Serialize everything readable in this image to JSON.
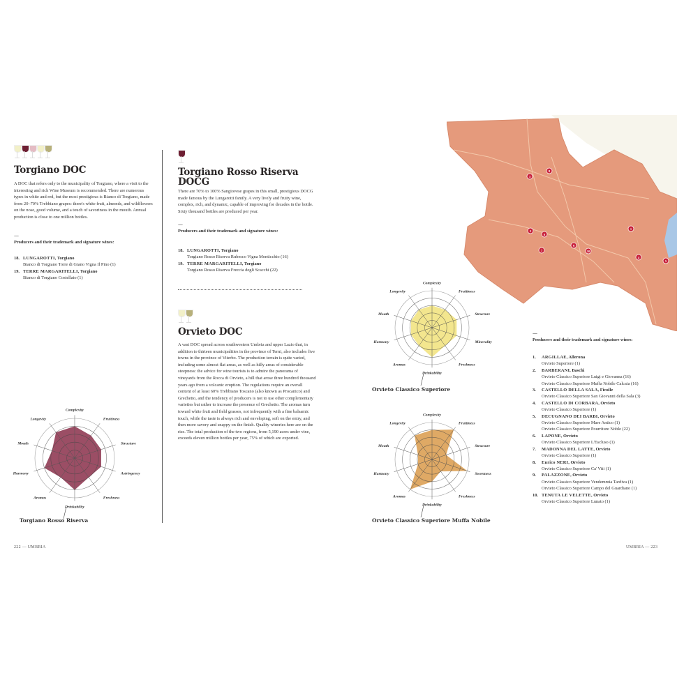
{
  "left_page": {
    "glasses": [
      "white",
      "red",
      "rose",
      "white",
      "sweet"
    ],
    "torgiano_doc": {
      "title": "Torgiano DOC",
      "body": "A DOC that refers only to the municipality of Torgiano, where a visit to the interesting and rich Wine Museum is recommended. There are numerous types in white and red, but the most prestigious is Bianco di Torgiano, made from 20–70% Trebbiano grapes: there's white fruit, almonds, and wildflowers on the nose, good volume, and a touch of savoriness in the mouth. Annual production is close to one million bottles.",
      "dash": "—",
      "producers_heading": "Producers and their trademark and signature wines:",
      "producers": [
        {
          "num": "18.",
          "name": "LUNGAROTTI",
          "town": ", Torgiano",
          "wines": [
            "Bianco di Torgiano Torre di Giano Vigna Il Pino (1)"
          ]
        },
        {
          "num": "19.",
          "name": "TERRE MARGARITELLI",
          "town": ", Torgiano",
          "wines": [
            "Bianco di Torgiano Costellato (1)"
          ]
        }
      ]
    },
    "folio": "222 — UMBRIA"
  },
  "middle_column": {
    "torgiano_rosso": {
      "glass": "red",
      "title": "Torgiano Rosso Riserva DOCG",
      "body": "There are 70% to 100% Sangiovese grapes in this small, prestigious DOCG made famous by the Lungarotti family. A very lively and fruity wine, complex, rich, and dynamic, capable of improving for decades in the bottle. Sixty thousand bottles are produced per year.",
      "dash": "—",
      "producers_heading": "Producers and their trademark and signature wines:",
      "producers": [
        {
          "num": "18.",
          "name": "LUNGAROTTI",
          "town": ", Torgiano",
          "wines": [
            "Torgiano Rosso Riserva Rubesco Vigna Monticchio (16)"
          ]
        },
        {
          "num": "19.",
          "name": "TERRE MARGARITELLI",
          "town": ", Torgiano",
          "wines": [
            "Torgiano Rosso Riserva Freccia degli Scacchi (22)"
          ]
        }
      ]
    },
    "orvieto_doc": {
      "glasses": [
        "white",
        "sweet"
      ],
      "title": "Orvieto DOC",
      "body": "A vast DOC spread across southwestern Umbria and upper Lazio that, in addition to thirteen municipalities in the province of Terni, also includes five towns in the province of Viterbo. The production terrain is quite varied, including some almost flat areas, as well as hilly areas of considerable steepness: the advice for wine tourists is to admire the panorama of vineyards from the Rocca di Orvieto, a hill that arose three hundred thousand years ago from a volcanic eruption. The regulations require an overall content of at least 60% Trebbiano Toscano (also known as Procanico) and Grechetto, and the tendency of producers is not to use other complementary varieties but rather to increase the presence of Grechetto. The aromas turn toward white fruit and field grasses, not infrequently with a fine balsamic touch, while the taste is always rich and enveloping, soft on the entry, and then more savory and snappy on the finish. Quality wineries here are on the rise. The total production of the two regions, from 5,190 acres under vine, exceeds eleven million bottles per year, 75% of which are exported."
    }
  },
  "radar_charts": [
    {
      "caption": "Torgiano Rosso Riserva",
      "color": "#8a2f4a",
      "axes": [
        "Complexity",
        "Fruitiness",
        "Structure",
        "Astringency",
        "Freshness",
        "Drinkability",
        "Aromas",
        "Harmony",
        "Mouth",
        "Longevity"
      ],
      "values": [
        4,
        3.5,
        3.5,
        3.5,
        3,
        4,
        3,
        4,
        3,
        4
      ],
      "max": 5
    },
    {
      "caption": "Orvieto Classico Superiore",
      "color": "#f1e27a",
      "axes": [
        "Complexity",
        "Fruitiness",
        "Structure",
        "Minerality",
        "Freshness",
        "Drinkability",
        "Aromas",
        "Harmony",
        "Mouth",
        "Longevity"
      ],
      "values": [
        3,
        3,
        3.5,
        3.5,
        3,
        4,
        3,
        3,
        3,
        3
      ],
      "max": 5
    },
    {
      "caption": "Orvieto Classico Superiore Muffa Nobile",
      "color": "#d99a4a",
      "axes": [
        "Complexity",
        "Fruitiness",
        "Structure",
        "Sweetness",
        "Freshness",
        "Drinkability",
        "Aromas",
        "Harmony",
        "Mouth",
        "Longevity"
      ],
      "values": [
        4,
        5,
        2,
        5,
        2,
        3,
        5,
        2,
        2,
        4
      ],
      "max": 5
    }
  ],
  "right_page": {
    "map": {
      "fill": "#e59a7c",
      "markers": [
        "3",
        "8",
        "2",
        "6",
        "7",
        "9",
        "10",
        "1",
        "4",
        "5"
      ]
    },
    "dash": "—",
    "producers_heading": "Producers and their trademark and signature wines:",
    "producers": [
      {
        "num": "1.",
        "name": "ARGILLAE",
        "town": ", Allerona",
        "wines": [
          "Orvieto Superiore (1)"
        ]
      },
      {
        "num": "2.",
        "name": "BARBERANI",
        "town": ", Baschi",
        "wines": [
          "Orvieto Classico Superiore Luigi e Giovanna (16)",
          "Orvieto Classico Superiore Muffa Nobile Calcaia (16)"
        ]
      },
      {
        "num": "3.",
        "name": "CASTELLO DELLA SALA",
        "town": ", Ficulle",
        "wines": [
          "Orvieto Classico Superiore San Giovanni della Sala (3)"
        ]
      },
      {
        "num": "4.",
        "name": "CASTELLO DI CORBARA",
        "town": ", Orvieto",
        "wines": [
          "Orvieto Classico Superiore (1)"
        ]
      },
      {
        "num": "5.",
        "name": "DECUGNANO DEI BARBI",
        "town": ", Orvieto",
        "wines": [
          "Orvieto Classico Superiore Mare Antico (1)",
          "Orvieto Classico Superiore Pourriture Noble (22)"
        ]
      },
      {
        "num": "6.",
        "name": "LAPONE",
        "town": ", Orvieto",
        "wines": [
          "Orvieto Classico Superiore L'Escluso (1)"
        ]
      },
      {
        "num": "7.",
        "name": "MADONNA DEL LATTE",
        "town": ", Orvieto",
        "wines": [
          "Orvieto Classico Superiore (1)"
        ]
      },
      {
        "num": "8.",
        "name": "Enrico NERI",
        "town": ", Orvieto",
        "wines": [
          "Orvieto Classico Superiore Ca' Viti (1)"
        ]
      },
      {
        "num": "9.",
        "name": "PALAZZONE",
        "town": ", Orvieto",
        "wines": [
          "Orvieto Classico Superiore Vendemmia Tardiva (1)",
          "Orvieto Classico Superiore Campo del Guardiano (1)"
        ]
      },
      {
        "num": "10.",
        "name": "TENUTA LE VELETTE",
        "town": ", Orvieto",
        "wines": [
          "Orvieto Classico Superiore Lunato (1)"
        ]
      }
    ],
    "folio": "UMBRIA — 223"
  }
}
